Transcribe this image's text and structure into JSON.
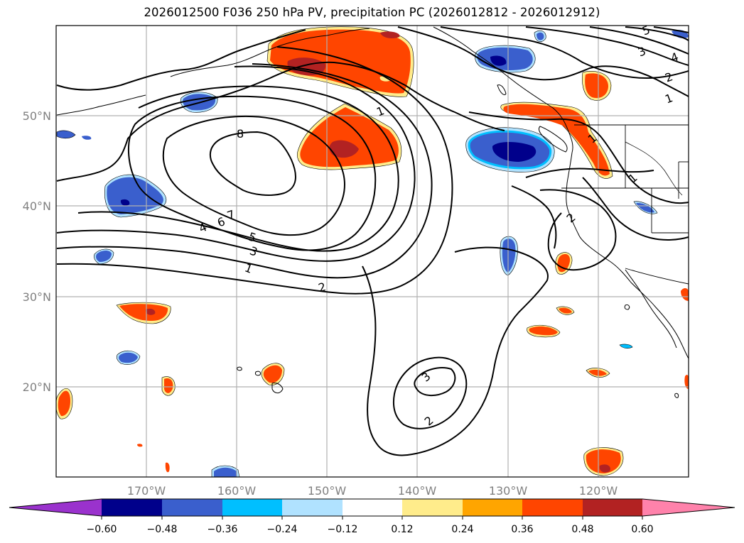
{
  "title": "2026012500 F036 250 hPa PV, precipitation PC (2026012812 - 2026012912)",
  "latitude_labels": [
    "50°N",
    "40°N",
    "30°N",
    "20°N"
  ],
  "longitude_labels": [
    "170°W",
    "160°W",
    "150°W",
    "140°W",
    "130°W",
    "120°W"
  ],
  "contour_labels": [
    "8",
    "7",
    "6",
    "5",
    "4",
    "3",
    "1",
    "2",
    "1",
    "1",
    "2",
    "3",
    "4",
    "5",
    "1",
    "2",
    "3",
    "2",
    "1"
  ],
  "colorbar": {
    "tick_labels": [
      "−0.60",
      "−0.48",
      "−0.36",
      "−0.24",
      "−0.12",
      "0.12",
      "0.24",
      "0.36",
      "0.48",
      "0.60"
    ],
    "colors": [
      "#9a32cd",
      "#00008b",
      "#3a5fcd",
      "#00bfff",
      "#b0e2ff",
      "#ffffff",
      "#ffec8b",
      "#ffa500",
      "#ff4500",
      "#b22222",
      "#ff82ab"
    ]
  },
  "colors": {
    "pos_low": "#ffec8b",
    "pos_mid": "#ffa500",
    "pos_high": "#ff4500",
    "pos_max": "#b22222",
    "neg_low": "#b0e2ff",
    "neg_mid": "#00bfff",
    "neg_high": "#3a5fcd",
    "neg_max": "#00008b"
  }
}
